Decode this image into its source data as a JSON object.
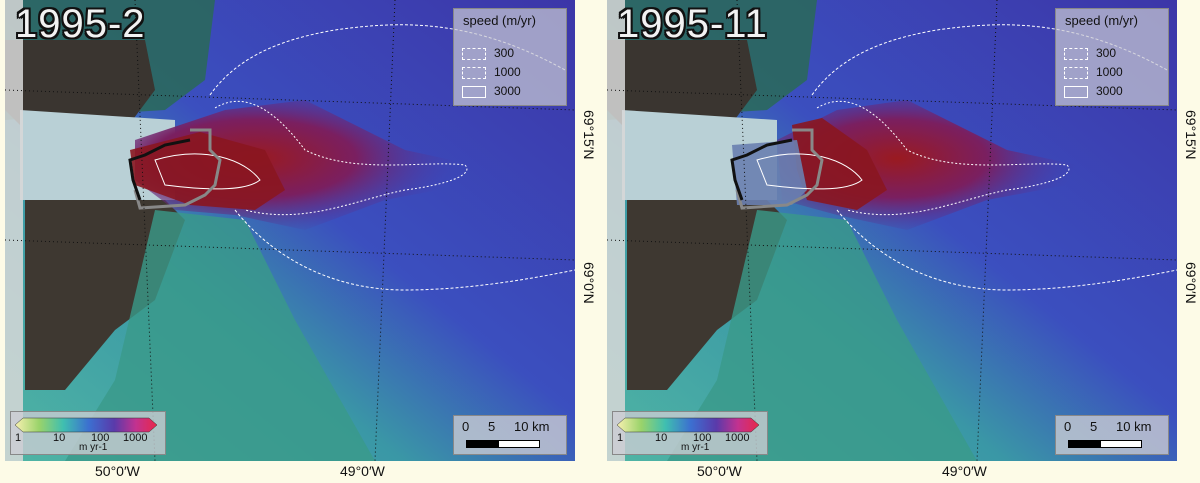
{
  "panels": [
    {
      "title": "1995-2",
      "legend_title": "speed (m/yr)",
      "contours": [
        "300",
        "1000",
        "3000"
      ],
      "front_filled": true
    },
    {
      "title": "1995-11",
      "legend_title": "speed (m/yr)",
      "contours": [
        "300",
        "1000",
        "3000"
      ],
      "front_filled": false
    }
  ],
  "colorbar": {
    "ticks": [
      "1",
      "10",
      "100",
      "1000"
    ],
    "unit": "m yr-1",
    "colors": [
      "#f7f0b0",
      "#9ad36a",
      "#3fbfb0",
      "#3c6fd0",
      "#5a3aaa",
      "#c23290",
      "#e8284a"
    ]
  },
  "scalebar": {
    "labels": [
      "0",
      "5",
      "10 km"
    ]
  },
  "lat_labels": [
    "69°15′N",
    "69°0′N"
  ],
  "lon_labels": [
    "50°0′W",
    "49°0′W"
  ],
  "colors": {
    "fast_ice": "#8a1620",
    "ocean_slow": "#3c3fa8",
    "land": "#3a3530",
    "fjord_ice": "#b9d0d6",
    "background": "#fdfbe7"
  }
}
